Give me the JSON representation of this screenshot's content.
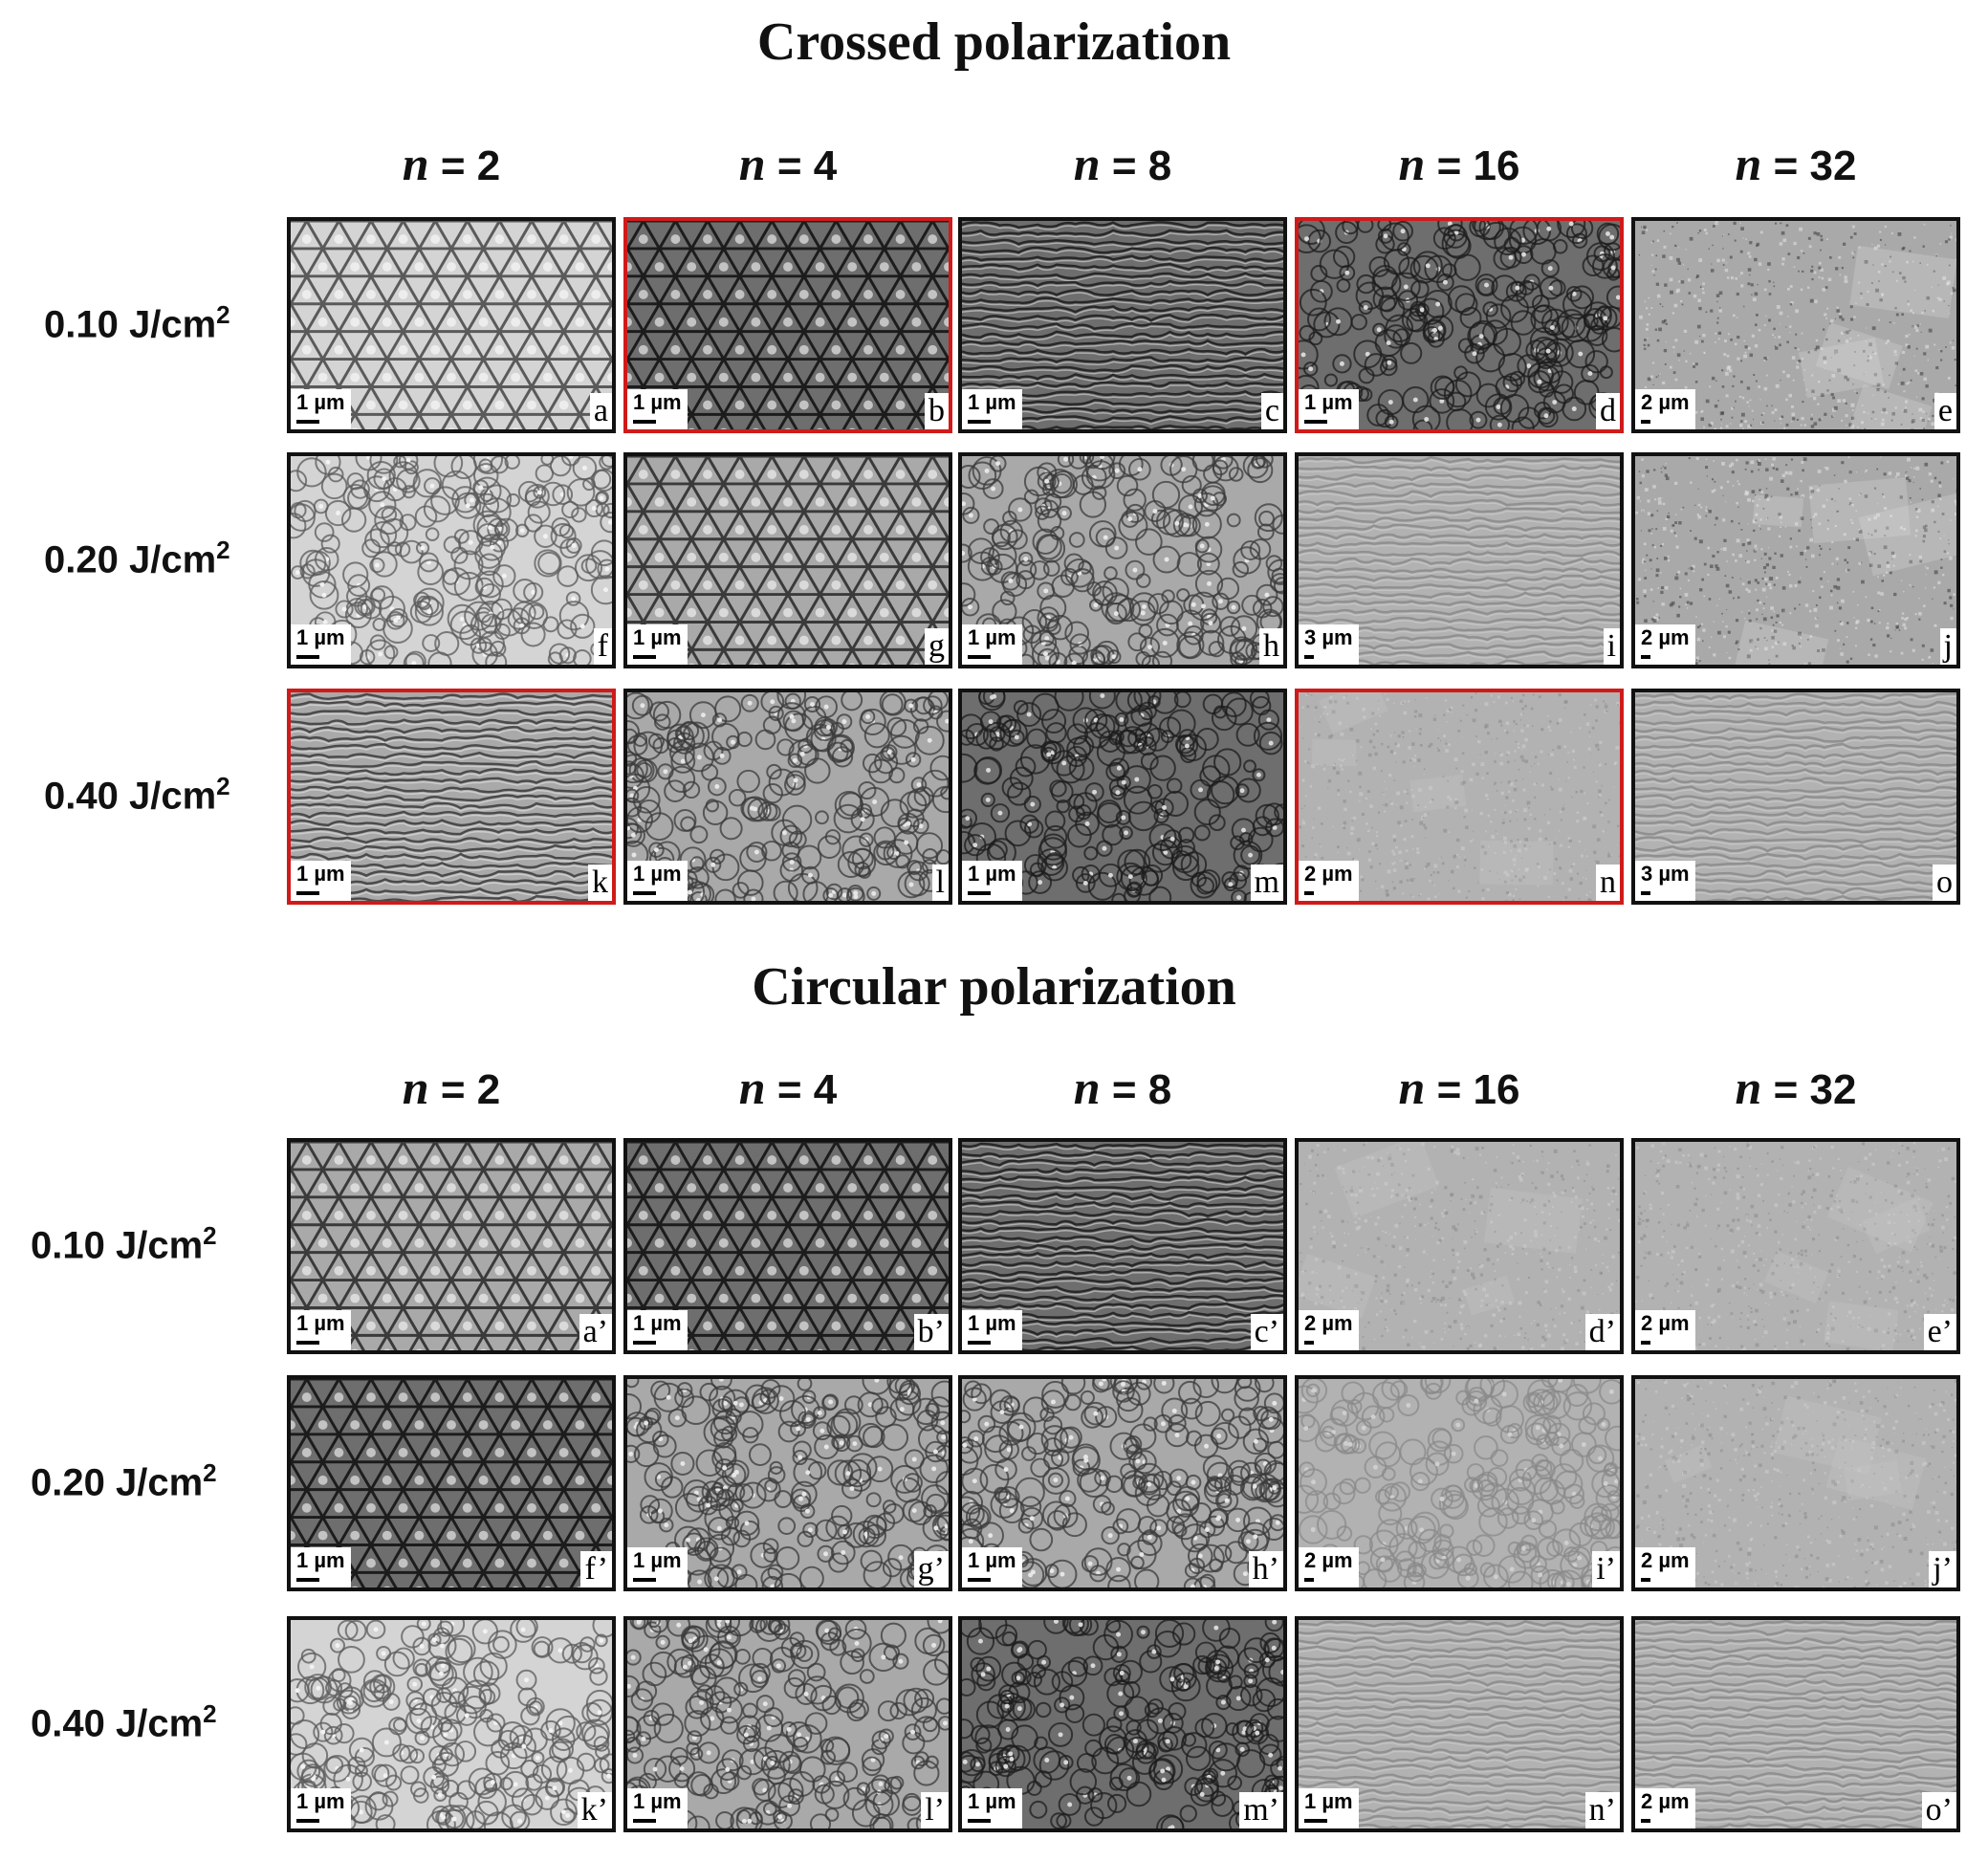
{
  "sections": [
    {
      "title": "Crossed polarization",
      "columns": [
        {
          "n": "n",
          "value": "= 2"
        },
        {
          "n": "n",
          "value": "= 4"
        },
        {
          "n": "n",
          "value": "= 8"
        },
        {
          "n": "n",
          "value": "= 16"
        },
        {
          "n": "n",
          "value": "= 32"
        }
      ],
      "rows": [
        {
          "label": "0.10 J/cm",
          "sup": "2"
        },
        {
          "label": "0.20 J/cm",
          "sup": "2"
        },
        {
          "label": "0.40 J/cm",
          "sup": "2"
        }
      ],
      "panels": [
        [
          {
            "id": "a",
            "scale": "1 µm",
            "highlighted": false,
            "texture": "lattice",
            "tone": "light"
          },
          {
            "id": "b",
            "scale": "1 µm",
            "highlighted": true,
            "texture": "lattice",
            "tone": "dark"
          },
          {
            "id": "c",
            "scale": "1 µm",
            "highlighted": false,
            "texture": "ripples",
            "tone": "dark"
          },
          {
            "id": "d",
            "scale": "1 µm",
            "highlighted": true,
            "texture": "cells",
            "tone": "dark"
          },
          {
            "id": "e",
            "scale": "2 µm",
            "highlighted": false,
            "texture": "grain",
            "tone": "mid"
          }
        ],
        [
          {
            "id": "f",
            "scale": "1 µm",
            "highlighted": false,
            "texture": "cells",
            "tone": "light"
          },
          {
            "id": "g",
            "scale": "1 µm",
            "highlighted": false,
            "texture": "lattice",
            "tone": "mid"
          },
          {
            "id": "h",
            "scale": "1 µm",
            "highlighted": false,
            "texture": "cells",
            "tone": "mid"
          },
          {
            "id": "i",
            "scale": "3 µm",
            "highlighted": false,
            "texture": "ripples",
            "tone": "smooth"
          },
          {
            "id": "j",
            "scale": "2 µm",
            "highlighted": false,
            "texture": "grain",
            "tone": "mid"
          }
        ],
        [
          {
            "id": "k",
            "scale": "1 µm",
            "highlighted": true,
            "texture": "ripples",
            "tone": "mid"
          },
          {
            "id": "l",
            "scale": "1 µm",
            "highlighted": false,
            "texture": "cells",
            "tone": "mid"
          },
          {
            "id": "m",
            "scale": "1 µm",
            "highlighted": false,
            "texture": "cells",
            "tone": "dark"
          },
          {
            "id": "n",
            "scale": "2 µm",
            "highlighted": true,
            "texture": "grain",
            "tone": "smooth"
          },
          {
            "id": "o",
            "scale": "3 µm",
            "highlighted": false,
            "texture": "ripples",
            "tone": "smooth"
          }
        ]
      ]
    },
    {
      "title": "Circular polarization",
      "columns": [
        {
          "n": "n",
          "value": "= 2"
        },
        {
          "n": "n",
          "value": "= 4"
        },
        {
          "n": "n",
          "value": "= 8"
        },
        {
          "n": "n",
          "value": "= 16"
        },
        {
          "n": "n",
          "value": "= 32"
        }
      ],
      "rows": [
        {
          "label": "0.10 J/cm",
          "sup": "2"
        },
        {
          "label": "0.20 J/cm",
          "sup": "2"
        },
        {
          "label": "0.40 J/cm",
          "sup": "2"
        }
      ],
      "panels": [
        [
          {
            "id": "a’",
            "scale": "1 µm",
            "highlighted": false,
            "texture": "lattice",
            "tone": "mid"
          },
          {
            "id": "b’",
            "scale": "1 µm",
            "highlighted": false,
            "texture": "lattice",
            "tone": "dark"
          },
          {
            "id": "c’",
            "scale": "1 µm",
            "highlighted": false,
            "texture": "ripples",
            "tone": "dark"
          },
          {
            "id": "d’",
            "scale": "2 µm",
            "highlighted": false,
            "texture": "grain",
            "tone": "smooth"
          },
          {
            "id": "e’",
            "scale": "2 µm",
            "highlighted": false,
            "texture": "grain",
            "tone": "smooth"
          }
        ],
        [
          {
            "id": "f’",
            "scale": "1 µm",
            "highlighted": false,
            "texture": "lattice",
            "tone": "dark"
          },
          {
            "id": "g’",
            "scale": "1 µm",
            "highlighted": false,
            "texture": "cells",
            "tone": "mid"
          },
          {
            "id": "h’",
            "scale": "1 µm",
            "highlighted": false,
            "texture": "cells",
            "tone": "mid"
          },
          {
            "id": "i’",
            "scale": "2 µm",
            "highlighted": false,
            "texture": "cells",
            "tone": "smooth"
          },
          {
            "id": "j’",
            "scale": "2 µm",
            "highlighted": false,
            "texture": "grain",
            "tone": "smooth"
          }
        ],
        [
          {
            "id": "k’",
            "scale": "1 µm",
            "highlighted": false,
            "texture": "cells",
            "tone": "light"
          },
          {
            "id": "l’",
            "scale": "1 µm",
            "highlighted": false,
            "texture": "cells",
            "tone": "mid"
          },
          {
            "id": "m’",
            "scale": "1 µm",
            "highlighted": false,
            "texture": "cells",
            "tone": "dark"
          },
          {
            "id": "n’",
            "scale": "1 µm",
            "highlighted": false,
            "texture": "ripples",
            "tone": "smooth"
          },
          {
            "id": "o’",
            "scale": "2 µm",
            "highlighted": false,
            "texture": "ripples",
            "tone": "smooth"
          }
        ]
      ]
    }
  ],
  "colors": {
    "highlight": "#d01a1a",
    "frame": "#111111"
  }
}
